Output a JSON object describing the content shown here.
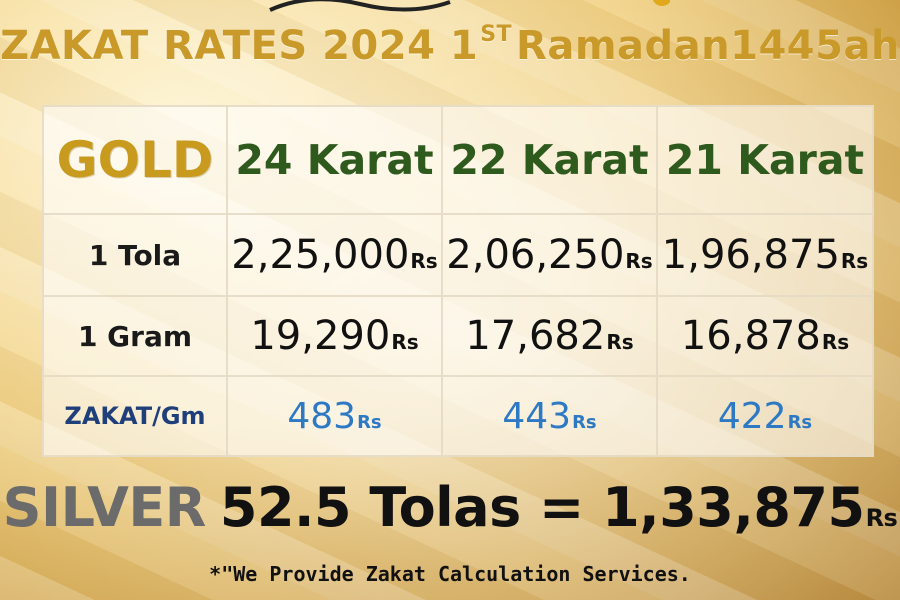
{
  "title": {
    "part1": "ZAKAT RATES 2024 1",
    "superscript": "ST",
    "part2": "Ramadan1445ah"
  },
  "table": {
    "header": {
      "label": "GOLD",
      "columns": [
        "24 Karat",
        "22 Karat",
        "21 Karat"
      ]
    },
    "rows": [
      {
        "label": "1 Tola",
        "values": [
          "2,25,000",
          "2,06,250",
          "1,96,875"
        ],
        "unit": "Rs"
      },
      {
        "label": "1 Gram",
        "values": [
          "19,290",
          "17,682",
          "16,878"
        ],
        "unit": "Rs"
      },
      {
        "label": "ZAKAT/Gm",
        "values": [
          "483",
          "443",
          "422"
        ],
        "unit": "Rs"
      }
    ]
  },
  "silver": {
    "label": "SILVER",
    "text": "52.5 Tolas = 1,33,875",
    "unit": "Rs"
  },
  "footer": {
    "note": "*\"We Provide Zakat Calculation Services."
  },
  "colors": {
    "gold_label": "#c89b1f",
    "karat_label": "#2f5a1e",
    "zakat_label": "#1f3f7a",
    "zakat_value": "#2d79c4",
    "silver_label": "#6b6b6b",
    "title": "#c99a2a"
  }
}
